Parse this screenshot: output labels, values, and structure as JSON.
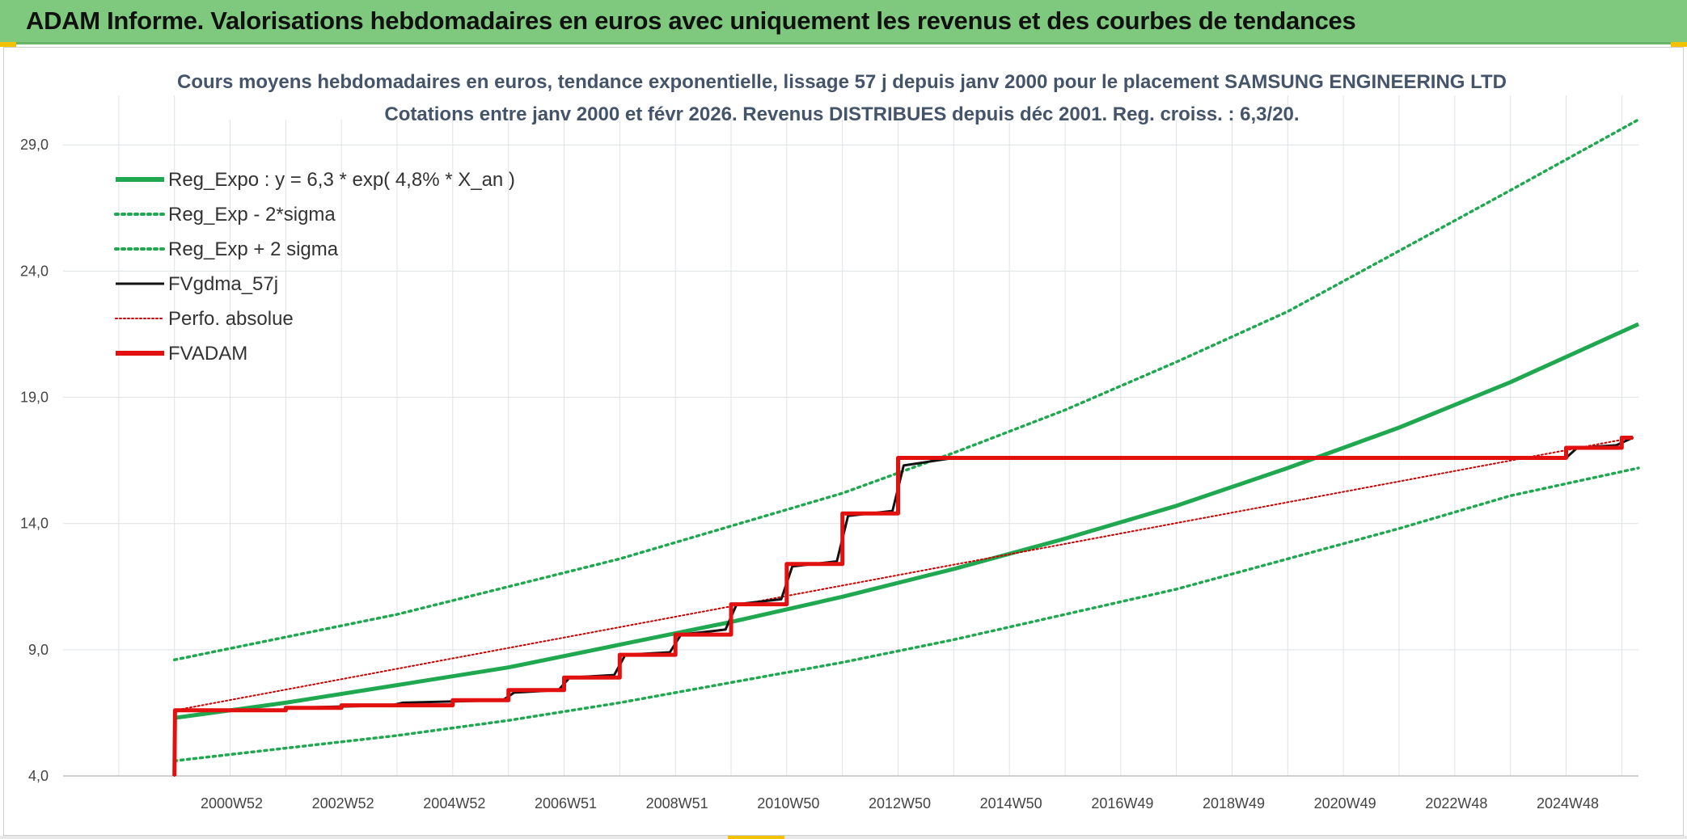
{
  "header": {
    "title": "ADAM Informe. Valorisations hebdomadaires en euros avec uniquement les revenus et des courbes de tendances"
  },
  "colors": {
    "trend": "#1fa84f",
    "fv": "#111111",
    "adam": "#e31010",
    "perfo": "#cc0000",
    "header_bg": "#7fc97f"
  },
  "chart_data": {
    "type": "line",
    "title": "Cours moyens hebdomadaires en euros, tendance exponentielle, lissage 57 j depuis janv 2000 pour le placement SAMSUNG ENGINEERING LTD",
    "subtitle": "Cotations entre janv 2000 et févr 2026. Revenus DISTRIBUES depuis déc 2001. Reg. croiss. : 6,3/20.",
    "xlabel": "",
    "ylabel": "",
    "x_range": [
      1998.0,
      2026.3
    ],
    "y_range": [
      4.0,
      30.0
    ],
    "yticks": [
      "4,0",
      "9,0",
      "14,0",
      "19,0",
      "24,0",
      "29,0"
    ],
    "ytick_values": [
      4,
      9,
      14,
      19,
      24,
      29
    ],
    "xtick_labels": [
      "2000W52",
      "2002W52",
      "2004W52",
      "2006W51",
      "2008W51",
      "2010W50",
      "2012W50",
      "2014W50",
      "2016W49",
      "2018W49",
      "2020W49",
      "2022W48",
      "2024W48"
    ],
    "xtick_values": [
      2001.0,
      2003.0,
      2005.0,
      2007.0,
      2009.0,
      2011.0,
      2013.0,
      2015.0,
      2017.0,
      2019.0,
      2021.0,
      2023.0,
      2025.0
    ],
    "grid": true,
    "legend_position": "top-left",
    "series": [
      {
        "name": "Reg_Expo : y = 6,3 * exp( 4,8% *  X_an )",
        "style": "solid-thick",
        "color": "#1fa84f",
        "x": [
          2000.0,
          2002.0,
          2004.0,
          2006.0,
          2008.0,
          2010.0,
          2012.0,
          2014.0,
          2016.0,
          2018.0,
          2020.0,
          2022.0,
          2024.0,
          2026.3
        ],
        "values": [
          6.3,
          6.9,
          7.6,
          8.3,
          9.2,
          10.1,
          11.1,
          12.2,
          13.4,
          14.7,
          16.2,
          17.8,
          19.6,
          21.9
        ]
      },
      {
        "name": "Reg_Exp - 2*sigma",
        "style": "dotted",
        "color": "#1fa84f",
        "x": [
          2000.0,
          2002.0,
          2004.0,
          2006.0,
          2008.0,
          2010.0,
          2012.0,
          2014.0,
          2016.0,
          2018.0,
          2020.0,
          2022.0,
          2024.0,
          2026.3
        ],
        "values": [
          4.6,
          5.1,
          5.6,
          6.2,
          6.9,
          7.7,
          8.5,
          9.4,
          10.4,
          11.4,
          12.6,
          13.8,
          15.1,
          16.2
        ]
      },
      {
        "name": "Reg_Exp + 2 sigma",
        "style": "dotted",
        "color": "#1fa84f",
        "x": [
          2000.0,
          2002.0,
          2004.0,
          2006.0,
          2008.0,
          2010.0,
          2012.0,
          2014.0,
          2016.0,
          2018.0,
          2020.0,
          2022.0,
          2024.0,
          2026.3
        ],
        "values": [
          8.6,
          9.5,
          10.4,
          11.5,
          12.6,
          13.9,
          15.2,
          16.8,
          18.5,
          20.4,
          22.4,
          24.8,
          27.2,
          30.0
        ]
      },
      {
        "name": "FVgdma_57j",
        "style": "solid",
        "color": "#111111",
        "x": [
          2000.0,
          2000.01,
          2001.9,
          2002.1,
          2003.9,
          2004.1,
          2005.9,
          2006.1,
          2006.9,
          2007.1,
          2007.9,
          2008.1,
          2008.9,
          2009.1,
          2009.9,
          2010.1,
          2010.9,
          2011.1,
          2011.9,
          2012.1,
          2012.9,
          2013.1,
          2014.0,
          2025.0,
          2025.2,
          2025.9,
          2026.2
        ],
        "values": [
          4.0,
          6.6,
          6.6,
          6.7,
          6.8,
          6.9,
          7.0,
          7.3,
          7.4,
          7.9,
          8.0,
          8.8,
          8.9,
          9.6,
          9.8,
          10.8,
          11.0,
          12.3,
          12.5,
          14.3,
          14.5,
          16.3,
          16.6,
          16.6,
          17.0,
          17.1,
          17.4
        ]
      },
      {
        "name": "Perfo. absolue",
        "style": "dotted",
        "color": "#cc0000",
        "x": [
          2000.0,
          2000.01,
          2026.2
        ],
        "values": [
          4.0,
          6.6,
          17.4
        ]
      },
      {
        "name": "FVADAM",
        "style": "solid-thick",
        "color": "#e31010",
        "x": [
          2000.0,
          2000.01,
          2002.0,
          2002.0,
          2003.0,
          2003.0,
          2005.0,
          2005.0,
          2006.0,
          2006.0,
          2007.0,
          2007.0,
          2008.0,
          2008.0,
          2009.0,
          2009.0,
          2010.0,
          2010.0,
          2011.0,
          2011.0,
          2012.0,
          2012.0,
          2013.0,
          2013.0,
          2025.0,
          2025.0,
          2026.0,
          2026.0,
          2026.2
        ],
        "values": [
          4.0,
          6.6,
          6.6,
          6.7,
          6.7,
          6.8,
          6.8,
          7.0,
          7.0,
          7.4,
          7.4,
          7.9,
          7.9,
          8.8,
          8.8,
          9.6,
          9.6,
          10.8,
          10.8,
          12.4,
          12.4,
          14.4,
          14.4,
          16.6,
          16.6,
          17.0,
          17.0,
          17.4,
          17.4
        ]
      }
    ]
  }
}
